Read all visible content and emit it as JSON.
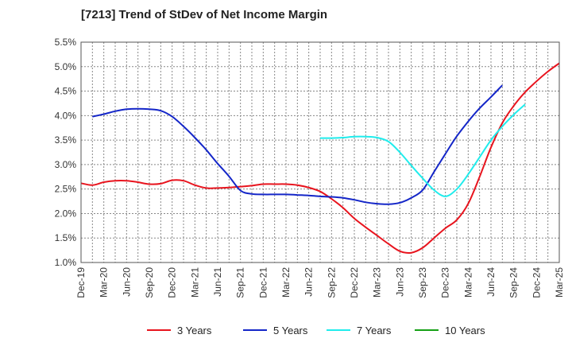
{
  "chart_data": {
    "type": "line",
    "title": "[7213]  Trend of StDev of Net Income Margin",
    "xlabel": "",
    "ylabel": "",
    "x_ticks": [
      "Dec-19",
      "Mar-20",
      "Jun-20",
      "Sep-20",
      "Dec-20",
      "Mar-21",
      "Jun-21",
      "Sep-21",
      "Dec-21",
      "Mar-22",
      "Jun-22",
      "Sep-22",
      "Dec-22",
      "Mar-23",
      "Jun-23",
      "Sep-23",
      "Dec-23",
      "Mar-24",
      "Jun-24",
      "Sep-24",
      "Dec-24",
      "Mar-25"
    ],
    "y_ticks": [
      "1.0%",
      "1.5%",
      "2.0%",
      "2.5%",
      "3.0%",
      "3.5%",
      "4.0%",
      "4.5%",
      "5.0%",
      "5.5%"
    ],
    "ylim": [
      1.0,
      5.5
    ],
    "grid": true,
    "legend_position": "bottom",
    "series": [
      {
        "name": "3 Years",
        "color": "#e8141e",
        "values": [
          2.62,
          2.58,
          2.64,
          2.67,
          2.67,
          2.64,
          2.6,
          2.61,
          2.68,
          2.67,
          2.58,
          2.52,
          2.52,
          2.53,
          2.55,
          2.57,
          2.6,
          2.6,
          2.6,
          2.58,
          2.53,
          2.45,
          2.3,
          2.12,
          1.9,
          1.72,
          1.55,
          1.38,
          1.23,
          1.2,
          1.3,
          1.5,
          1.7,
          1.87,
          2.2,
          2.75,
          3.35,
          3.85,
          4.2,
          4.48,
          4.7,
          4.9,
          5.07
        ]
      },
      {
        "name": "5 Years",
        "color": "#1426c8",
        "values": [
          null,
          3.98,
          4.03,
          4.09,
          4.13,
          4.14,
          4.13,
          4.1,
          3.98,
          3.78,
          3.55,
          3.3,
          3.02,
          2.76,
          2.47,
          2.4,
          2.39,
          2.39,
          2.39,
          2.38,
          2.37,
          2.35,
          2.34,
          2.32,
          2.28,
          2.23,
          2.2,
          2.19,
          2.22,
          2.32,
          2.48,
          2.85,
          3.22,
          3.58,
          3.88,
          4.15,
          4.38,
          4.62
        ]
      },
      {
        "name": "7 Years",
        "color": "#20ecec",
        "values": [
          null,
          null,
          null,
          null,
          null,
          null,
          null,
          null,
          null,
          null,
          null,
          null,
          null,
          null,
          null,
          null,
          null,
          null,
          null,
          null,
          null,
          3.54,
          3.54,
          3.55,
          3.57,
          3.57,
          3.55,
          3.47,
          3.25,
          2.98,
          2.72,
          2.48,
          2.35,
          2.5,
          2.8,
          3.15,
          3.5,
          3.78,
          4.02,
          4.23
        ]
      },
      {
        "name": "10 Years",
        "color": "#16a016",
        "values": []
      }
    ]
  }
}
